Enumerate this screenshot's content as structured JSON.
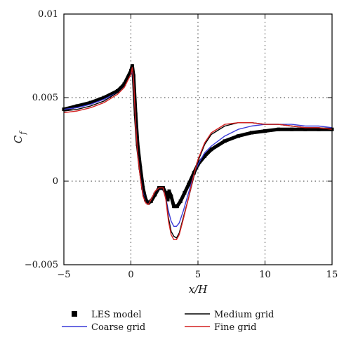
{
  "chart_data": {
    "type": "line",
    "xlabel": "x/H",
    "ylabel_main": "C",
    "ylabel_sub": "f",
    "xlim": [
      -5,
      15
    ],
    "ylim": [
      -0.005,
      0.01
    ],
    "xticks": [
      -5,
      0,
      5,
      10,
      15
    ],
    "xtick_labels": [
      "−5",
      "0",
      "5",
      "10",
      "15"
    ],
    "yticks": [
      -0.005,
      0,
      0.005,
      0.01
    ],
    "ytick_labels": [
      "−0.005",
      "0",
      "0.005",
      "0.01"
    ],
    "grid": "dotted",
    "legend_placement": "bottom",
    "series": [
      {
        "name": "LES model",
        "color": "#000000",
        "style": "markers",
        "x": [
          -5,
          -4,
          -3,
          -2,
          -1,
          -0.5,
          0,
          0.1,
          0.2,
          0.35,
          0.5,
          0.7,
          0.9,
          1.1,
          1.3,
          1.5,
          1.8,
          2.1,
          2.4,
          2.6,
          2.75,
          2.85,
          3.0,
          3.2,
          3.45,
          3.7,
          4.0,
          4.3,
          4.7,
          5.0,
          5.5,
          6,
          7,
          8,
          9,
          10,
          11,
          12,
          13,
          14,
          15
        ],
        "y": [
          0.0043,
          0.0045,
          0.0047,
          0.005,
          0.0054,
          0.0058,
          0.0066,
          0.0069,
          0.0063,
          0.004,
          0.0022,
          0.0008,
          -0.0004,
          -0.0011,
          -0.0013,
          -0.0012,
          -0.0008,
          -0.0004,
          -0.0004,
          -0.0007,
          -0.0011,
          -0.0006,
          -0.0009,
          -0.0015,
          -0.0015,
          -0.0012,
          -0.0007,
          -0.0002,
          0.0005,
          0.001,
          0.0015,
          0.0019,
          0.0024,
          0.0027,
          0.0029,
          0.003,
          0.0031,
          0.0031,
          0.0031,
          0.0031,
          0.0031
        ]
      },
      {
        "name": "Medium grid",
        "color": "#000000",
        "style": "line",
        "x": [
          -5,
          -4,
          -3,
          -2,
          -1,
          -0.5,
          0,
          0.1,
          0.2,
          0.35,
          0.5,
          0.7,
          0.9,
          1.1,
          1.3,
          1.5,
          1.8,
          2.1,
          2.4,
          2.6,
          2.8,
          3.0,
          3.2,
          3.4,
          3.6,
          3.9,
          4.3,
          4.7,
          5.0,
          5.5,
          6,
          7,
          8,
          9,
          10,
          11,
          12,
          13,
          14,
          15
        ],
        "y": [
          0.0042,
          0.0043,
          0.0045,
          0.0048,
          0.0053,
          0.0057,
          0.0065,
          0.0067,
          0.006,
          0.0035,
          0.0018,
          0.0004,
          -0.0008,
          -0.0012,
          -0.0013,
          -0.0011,
          -0.0007,
          -0.0005,
          -0.0005,
          -0.001,
          -0.0022,
          -0.003,
          -0.0033,
          -0.0034,
          -0.0031,
          -0.0022,
          -0.001,
          0.0003,
          0.0012,
          0.0022,
          0.0028,
          0.0033,
          0.0035,
          0.0035,
          0.0034,
          0.0034,
          0.0033,
          0.0032,
          0.0032,
          0.0031
        ]
      },
      {
        "name": "Coarse grid",
        "color": "#3a3ad8",
        "style": "line",
        "x": [
          -5,
          -4,
          -3,
          -2,
          -1,
          -0.5,
          0,
          0.1,
          0.2,
          0.35,
          0.5,
          0.7,
          0.9,
          1.1,
          1.3,
          1.5,
          1.8,
          2.1,
          2.4,
          2.6,
          2.8,
          3.0,
          3.2,
          3.4,
          3.6,
          3.9,
          4.3,
          4.7,
          5.0,
          5.5,
          6,
          7,
          8,
          9,
          10,
          11,
          12,
          13,
          14,
          15
        ],
        "y": [
          0.0043,
          0.0044,
          0.0046,
          0.0049,
          0.0053,
          0.0057,
          0.0064,
          0.0066,
          0.0059,
          0.0036,
          0.0018,
          0.0004,
          -0.0007,
          -0.0012,
          -0.0013,
          -0.0011,
          -0.0007,
          -0.0005,
          -0.0005,
          -0.001,
          -0.0018,
          -0.0024,
          -0.0027,
          -0.0027,
          -0.0025,
          -0.0018,
          -0.0007,
          0.0004,
          0.001,
          0.0017,
          0.0021,
          0.0027,
          0.0031,
          0.0033,
          0.0034,
          0.0034,
          0.0034,
          0.0033,
          0.0033,
          0.0032
        ]
      },
      {
        "name": "Fine grid",
        "color": "#d42020",
        "style": "line",
        "x": [
          -5,
          -4,
          -3,
          -2,
          -1,
          -0.5,
          0,
          0.1,
          0.2,
          0.35,
          0.5,
          0.7,
          0.9,
          1.1,
          1.3,
          1.5,
          1.8,
          2.1,
          2.4,
          2.6,
          2.8,
          3.0,
          3.2,
          3.4,
          3.6,
          3.9,
          4.3,
          4.7,
          5.0,
          5.5,
          6,
          7,
          8,
          9,
          10,
          11,
          12,
          13,
          14,
          15
        ],
        "y": [
          0.0041,
          0.0042,
          0.0044,
          0.0047,
          0.0052,
          0.0056,
          0.0064,
          0.0068,
          0.0061,
          0.0034,
          0.0016,
          0.0002,
          -0.0009,
          -0.0013,
          -0.0014,
          -0.0011,
          -0.0006,
          -0.0004,
          -0.0004,
          -0.0011,
          -0.0024,
          -0.0032,
          -0.0035,
          -0.0035,
          -0.0032,
          -0.0023,
          -0.001,
          0.0004,
          0.0013,
          0.0023,
          0.0029,
          0.0034,
          0.0035,
          0.0035,
          0.0034,
          0.0034,
          0.0033,
          0.0032,
          0.0032,
          0.0031
        ]
      }
    ],
    "legend": [
      {
        "label": "LES model",
        "kind": "square",
        "color": "#000000"
      },
      {
        "label": "Medium grid",
        "kind": "line",
        "color": "#000000"
      },
      {
        "label": "Coarse grid",
        "kind": "line",
        "color": "#3a3ad8"
      },
      {
        "label": "Fine grid",
        "kind": "line",
        "color": "#d42020"
      }
    ]
  }
}
